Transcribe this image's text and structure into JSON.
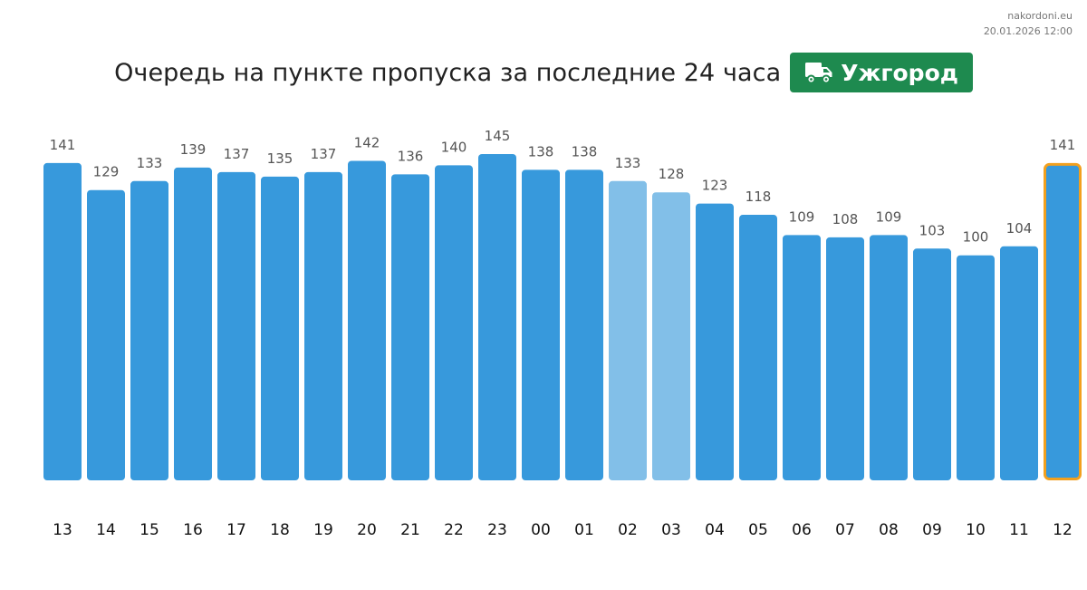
{
  "site": "nakordoni.eu",
  "timestamp": "20.01.2026 12:00",
  "title": "Очередь на пункте пропуска за последние 24 часа",
  "badge": {
    "label": "Ужгород",
    "icon": "truck-icon",
    "color": "#1e8a4f"
  },
  "colors": {
    "bar": "#3799dc",
    "bar_light": "#82bfe8",
    "highlight_border": "#f2a01e",
    "value_label": "#555555",
    "tick_label": "#111111"
  },
  "chart_data": {
    "type": "bar",
    "categories": [
      "13",
      "14",
      "15",
      "16",
      "17",
      "18",
      "19",
      "20",
      "21",
      "22",
      "23",
      "00",
      "01",
      "02",
      "03",
      "04",
      "05",
      "06",
      "07",
      "08",
      "09",
      "10",
      "11",
      "12"
    ],
    "values": [
      141,
      129,
      133,
      139,
      137,
      135,
      137,
      142,
      136,
      140,
      145,
      138,
      138,
      133,
      128,
      123,
      118,
      109,
      108,
      109,
      103,
      100,
      104,
      141
    ],
    "light_categories": [
      "02",
      "03"
    ],
    "highlight_category": "12",
    "ylim": [
      0,
      145
    ],
    "grid": false,
    "legend": false,
    "data_labels": true
  }
}
